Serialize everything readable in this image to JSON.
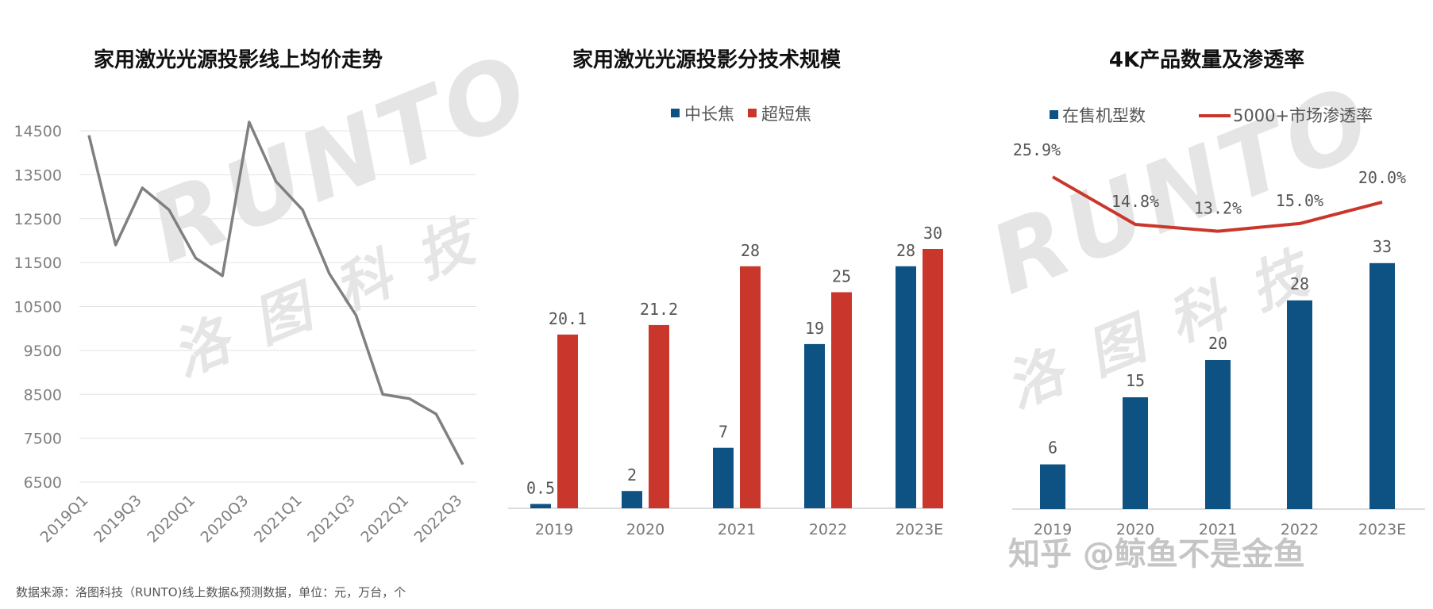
{
  "chart_data": [
    {
      "type": "line",
      "title": "家用激光光源投影线上均价走势",
      "x": [
        "2019Q1",
        "2019Q2",
        "2019Q3",
        "2019Q4",
        "2020Q1",
        "2020Q2",
        "2020Q3",
        "2020Q4",
        "2021Q1",
        "2021Q2",
        "2021Q3",
        "2021Q4",
        "2022Q1",
        "2022Q2",
        "2022Q3"
      ],
      "x_tick_labels": [
        "2019Q1",
        "2019Q3",
        "2020Q1",
        "2020Q3",
        "2021Q1",
        "2021Q3",
        "2022Q1",
        "2022Q3"
      ],
      "series": [
        {
          "name": "",
          "values": [
            14400,
            11900,
            13200,
            12700,
            11600,
            11200,
            14700,
            13350,
            12700,
            11250,
            10300,
            8500,
            8400,
            8050,
            6900
          ]
        }
      ],
      "y_ticks": [
        6500,
        7500,
        8500,
        9500,
        10500,
        11500,
        12500,
        13500,
        14500
      ],
      "ylim": [
        6500,
        14500
      ],
      "grid": true,
      "colors": {
        "line": "#808080"
      }
    },
    {
      "type": "bar",
      "title": "家用激光光源投影分技术规模",
      "categories": [
        "2019",
        "2020",
        "2021",
        "2022",
        "2023E"
      ],
      "series": [
        {
          "name": "中长焦",
          "values": [
            0.5,
            2,
            7,
            19,
            28
          ],
          "labels": [
            "0.5",
            "2",
            "7",
            "19",
            "28"
          ],
          "color": "#0e5283"
        },
        {
          "name": "超短焦",
          "values": [
            20.1,
            21.2,
            28,
            25,
            30
          ],
          "labels": [
            "20.1",
            "21.2",
            "28",
            "25",
            "30"
          ],
          "color": "#c9372c"
        }
      ],
      "legend": "top"
    },
    {
      "type": "bar",
      "title": "4K产品数量及渗透率",
      "categories": [
        "2019",
        "2020",
        "2021",
        "2022",
        "2023E"
      ],
      "series": [
        {
          "name": "在售机型数",
          "values": [
            6,
            15,
            20,
            28,
            33
          ],
          "labels": [
            "6",
            "15",
            "20",
            "28",
            "33"
          ],
          "color": "#0e5283"
        },
        {
          "name": "5000+市场渗透率",
          "type": "line",
          "values": [
            25.9,
            14.8,
            13.2,
            15.0,
            20.0
          ],
          "labels": [
            "25.9%",
            "14.8%",
            "13.2%",
            "15.0%",
            "20.0%"
          ],
          "color": "#c9372c"
        }
      ],
      "legend": "top"
    }
  ],
  "source_text": "数据来源：洛图科技（RUNTO)线上数据&预测数据，单位：元，万台，个",
  "watermark": {
    "brand": "RUNTO",
    "cn": "洛图科技"
  },
  "zhihu_watermark": "知乎 @鲸鱼不是金鱼"
}
